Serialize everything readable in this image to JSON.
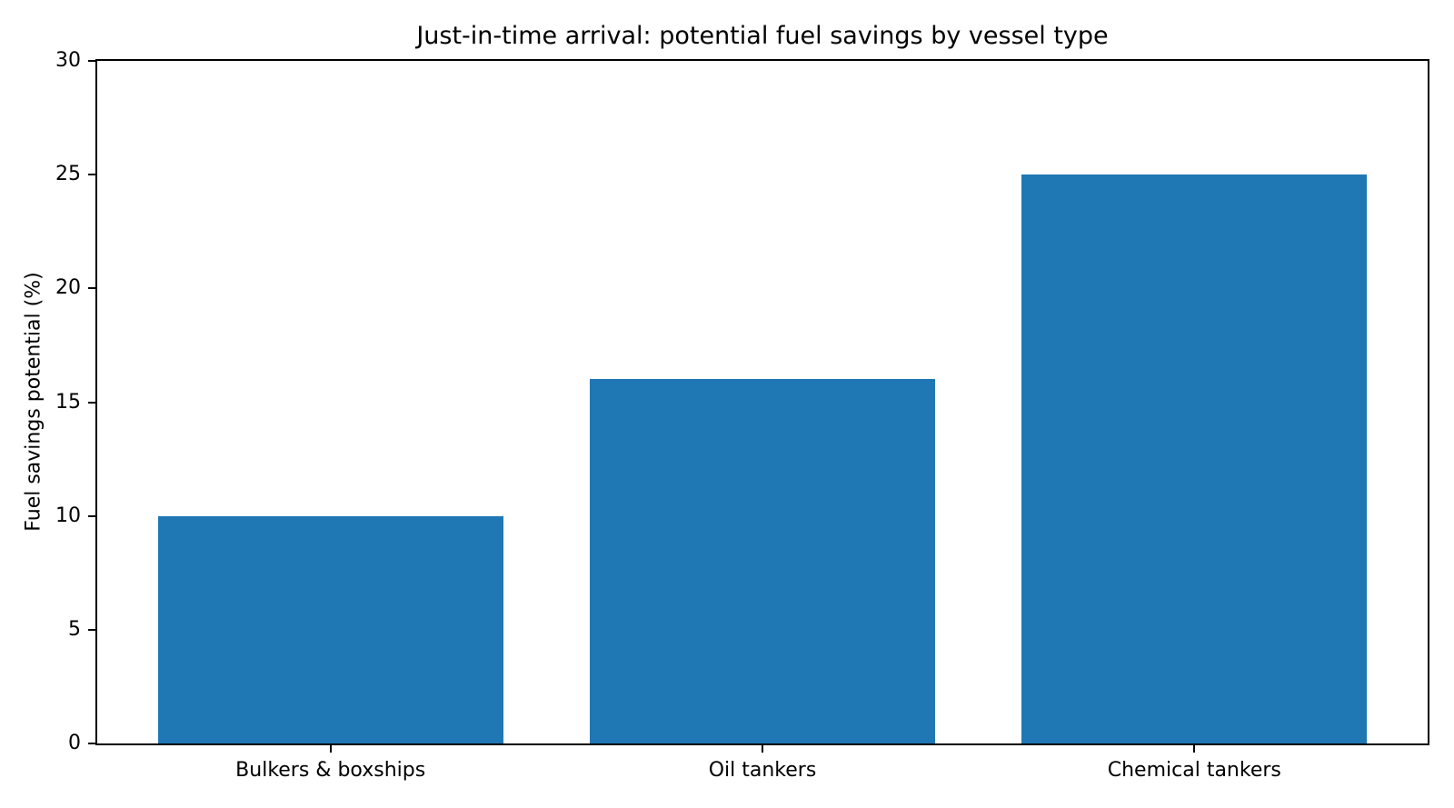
{
  "figure": {
    "background_color": "#ffffff",
    "text_color": "#000000",
    "axis_color": "#000000"
  },
  "chart_data": {
    "type": "bar",
    "title": "Just-in-time arrival: potential fuel savings by vessel type",
    "categories": [
      "Bulkers & boxships",
      "Oil tankers",
      "Chemical tankers"
    ],
    "values": [
      10,
      16,
      25
    ],
    "xlabel": "",
    "ylabel": "Fuel savings potential (%)",
    "ylim": [
      0,
      30
    ],
    "yticks": [
      0,
      5,
      10,
      15,
      20,
      25,
      30
    ],
    "bar_color": "#1f77b4",
    "bar_width_fraction": 0.8,
    "x_margin_fraction": 0.05,
    "grid": false,
    "legend": null
  }
}
